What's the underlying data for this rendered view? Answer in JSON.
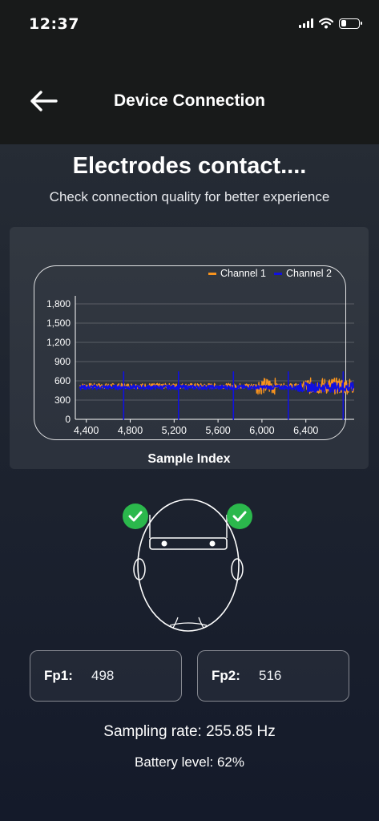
{
  "status_bar": {
    "time": "12:37",
    "icons": [
      "signal-icon",
      "wifi-icon",
      "battery-icon"
    ]
  },
  "nav": {
    "title": "Device Connection",
    "back_icon": "arrow-left-icon"
  },
  "heading": "Electrodes contact....",
  "subheading": "Check connection quality for better experience",
  "chart_data": {
    "type": "line",
    "xlabel": "Sample Index",
    "ylabel": "",
    "xlim": [
      4300,
      6840
    ],
    "ylim": [
      0,
      1800
    ],
    "x_ticks": [
      4400,
      4800,
      5200,
      5600,
      6000,
      6400
    ],
    "x_tick_labels": [
      "4,400",
      "4,800",
      "5,200",
      "5,600",
      "6,000",
      "6,400"
    ],
    "y_ticks": [
      0,
      300,
      600,
      900,
      1200,
      1500,
      1800
    ],
    "y_tick_labels": [
      "0",
      "300",
      "600",
      "900",
      "1,200",
      "1,500",
      "1,800"
    ],
    "grid": true,
    "legend_position": "top-right",
    "series": [
      {
        "name": "Channel 1",
        "color": "#f7931e",
        "baseline": 520,
        "noise": 40,
        "spike_samples": [],
        "burst_ranges": [
          [
            5950,
            6120
          ],
          [
            6380,
            6840
          ]
        ]
      },
      {
        "name": "Channel 2",
        "color": "#1010e0",
        "baseline": 500,
        "noise": 35,
        "spike_samples": [
          4490,
          4740,
          4990,
          5240,
          5490,
          5740,
          5990,
          6240,
          6490,
          6740
        ],
        "spike_low": 0,
        "spike_high": 740
      }
    ]
  },
  "electrodes": {
    "left": {
      "label": "Fp1:",
      "value": "498",
      "status": "connected",
      "status_icon": "check-icon"
    },
    "right": {
      "label": "Fp2:",
      "value": "516",
      "status": "connected",
      "status_icon": "check-icon"
    }
  },
  "sampling_rate": "Sampling rate: 255.85 Hz",
  "battery_level": "Battery level: 62%"
}
